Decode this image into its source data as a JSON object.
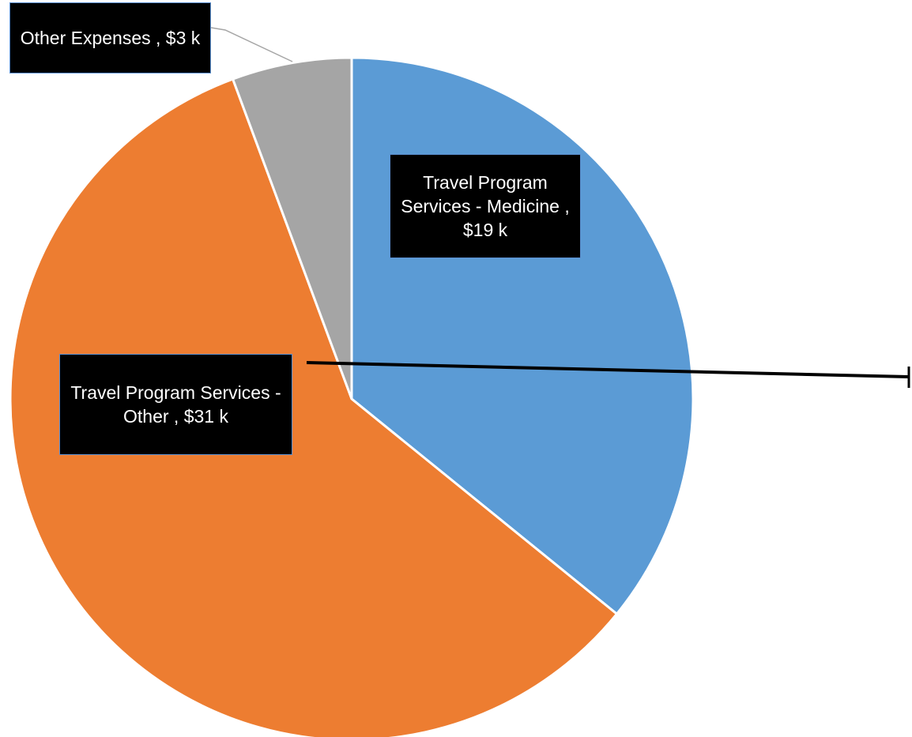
{
  "chart_data": {
    "type": "pie",
    "values": [
      19,
      31,
      3
    ],
    "value_labels": [
      "Travel Program Services - Medicine ,  $19 k",
      "Travel Program Services - Other , $31  k",
      "Other Expenses , $3 k"
    ],
    "colors": [
      "#5b9bd5",
      "#ed7d31",
      "#a5a5a5"
    ]
  }
}
